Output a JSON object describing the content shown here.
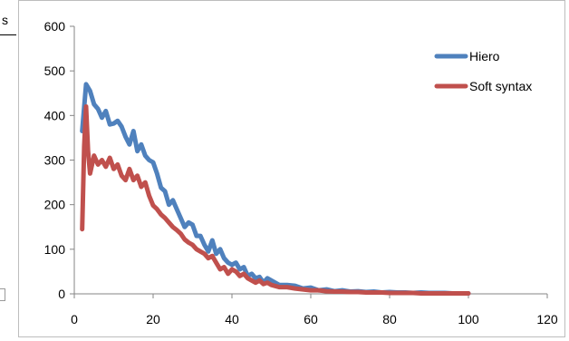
{
  "chart_data": {
    "type": "line",
    "title": "",
    "xlabel": "",
    "ylabel": "",
    "xlim": [
      0,
      120
    ],
    "ylim": [
      0,
      600
    ],
    "x_ticks": [
      0,
      20,
      40,
      60,
      80,
      100,
      120
    ],
    "y_ticks": [
      0,
      100,
      200,
      300,
      400,
      500,
      600
    ],
    "grid": false,
    "legend": "top-right",
    "series": [
      {
        "name": "Hiero",
        "color": "#4f81bd",
        "x": [
          2,
          3,
          4,
          5,
          6,
          7,
          8,
          9,
          10,
          11,
          12,
          13,
          14,
          15,
          16,
          17,
          18,
          19,
          20,
          21,
          22,
          23,
          24,
          25,
          26,
          27,
          28,
          29,
          30,
          31,
          32,
          33,
          34,
          35,
          36,
          37,
          38,
          39,
          40,
          41,
          42,
          43,
          44,
          45,
          46,
          47,
          48,
          49,
          50,
          52,
          54,
          56,
          58,
          60,
          62,
          64,
          66,
          68,
          70,
          72,
          74,
          76,
          78,
          80,
          82,
          84,
          86,
          88,
          90,
          92,
          94,
          96,
          98,
          100
        ],
        "values": [
          365,
          470,
          455,
          425,
          415,
          395,
          410,
          380,
          382,
          388,
          375,
          352,
          335,
          365,
          320,
          335,
          310,
          300,
          295,
          270,
          238,
          230,
          200,
          210,
          190,
          170,
          150,
          160,
          155,
          130,
          130,
          110,
          95,
          120,
          90,
          100,
          80,
          70,
          65,
          70,
          55,
          60,
          40,
          45,
          35,
          38,
          25,
          35,
          30,
          20,
          20,
          18,
          12,
          14,
          8,
          10,
          6,
          8,
          5,
          6,
          4,
          5,
          3,
          4,
          3,
          3,
          2,
          3,
          2,
          2,
          2,
          1,
          1,
          1
        ]
      },
      {
        "name": "Soft syntax",
        "color": "#c0504d",
        "x": [
          2,
          2.5,
          3,
          3.5,
          4,
          5,
          6,
          7,
          8,
          9,
          10,
          11,
          12,
          13,
          14,
          15,
          16,
          17,
          18,
          19,
          20,
          21,
          22,
          23,
          24,
          25,
          26,
          27,
          28,
          29,
          30,
          31,
          32,
          33,
          34,
          35,
          36,
          37,
          38,
          39,
          40,
          41,
          42,
          43,
          44,
          45,
          46,
          47,
          48,
          49,
          50,
          52,
          54,
          56,
          58,
          60,
          62,
          64,
          66,
          68,
          70,
          72,
          74,
          76,
          78,
          80,
          82,
          84,
          86,
          88,
          90,
          92,
          94,
          96,
          98,
          100
        ],
        "values": [
          145,
          330,
          420,
          320,
          270,
          310,
          290,
          300,
          285,
          305,
          280,
          290,
          265,
          255,
          280,
          255,
          265,
          240,
          250,
          220,
          198,
          190,
          178,
          170,
          160,
          150,
          143,
          135,
          122,
          115,
          110,
          100,
          95,
          90,
          80,
          85,
          70,
          55,
          60,
          45,
          55,
          50,
          40,
          45,
          35,
          30,
          25,
          30,
          22,
          25,
          20,
          15,
          15,
          12,
          10,
          8,
          8,
          6,
          5,
          5,
          4,
          4,
          3,
          3,
          3,
          2,
          2,
          2,
          2,
          1,
          1,
          1,
          1,
          1,
          1,
          1
        ]
      }
    ]
  }
}
